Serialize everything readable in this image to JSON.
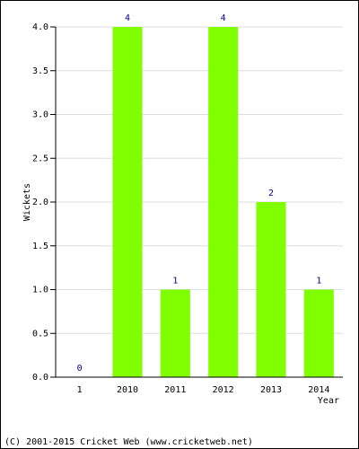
{
  "chart_data": {
    "type": "bar",
    "categories": [
      "1",
      "2010",
      "2011",
      "2012",
      "2013",
      "2014"
    ],
    "values": [
      0,
      4,
      1,
      4,
      2,
      1
    ],
    "color": "#80ff00",
    "ylim": [
      0,
      4
    ],
    "yticks": [
      {
        "value": 0,
        "label": "0.0"
      },
      {
        "value": 0.5,
        "label": "0.5"
      },
      {
        "value": 1,
        "label": "1.0"
      },
      {
        "value": 1.5,
        "label": "1.5"
      },
      {
        "value": 2,
        "label": "2.0"
      },
      {
        "value": 2.5,
        "label": "2.5"
      },
      {
        "value": 3,
        "label": "3.0"
      },
      {
        "value": 3.5,
        "label": "3.5"
      },
      {
        "value": 4,
        "label": "4.0"
      }
    ],
    "y_label": "Wickets",
    "x_label": "Year",
    "grid": true
  },
  "footer": "(C) 2001-2015 Cricket Web (www.cricketweb.net)"
}
